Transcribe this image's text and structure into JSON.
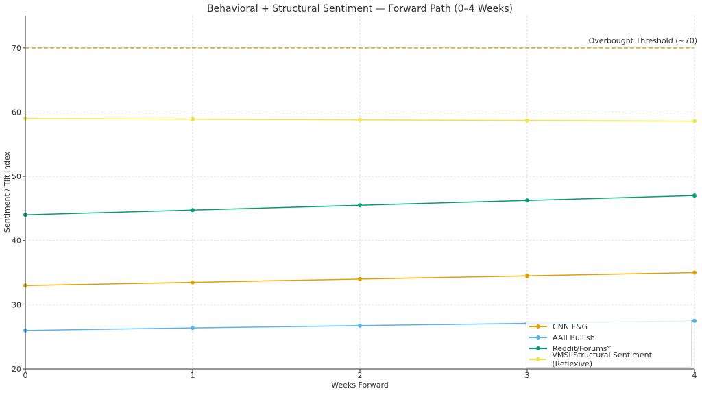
{
  "chart_data": {
    "type": "line",
    "title": "Behavioral + Structural Sentiment — Forward Path (0–4 Weeks)",
    "xlabel": "Weeks Forward",
    "ylabel": "Sentiment / Tilt Index",
    "x": [
      0,
      1,
      2,
      3,
      4
    ],
    "xticks": [
      "0",
      "1",
      "2",
      "3",
      "4"
    ],
    "yticks": [
      "20",
      "30",
      "40",
      "50",
      "60",
      "70"
    ],
    "xlim": [
      0,
      4
    ],
    "ylim": [
      20,
      75
    ],
    "grid": true,
    "legend_position": "bottom-right",
    "series": [
      {
        "name": "CNN F&G",
        "color": "#E69F00",
        "values": [
          33,
          33.5,
          34,
          34.5,
          35
        ]
      },
      {
        "name": "AAII Bullish",
        "color": "#56B4E9",
        "values": [
          26,
          26.4,
          26.75,
          27.1,
          27.5
        ]
      },
      {
        "name": "Reddit/Forums*",
        "color": "#009E73",
        "values": [
          44,
          44.75,
          45.5,
          46.25,
          47
        ]
      },
      {
        "name": "VMSI Structural Sentiment (Reflexive)",
        "color": "#F0E442",
        "values": [
          59,
          58.9,
          58.8,
          58.7,
          58.6
        ]
      }
    ],
    "annotations": [
      {
        "type": "hline",
        "y": 70,
        "color": "#DAA520",
        "style": "dashed",
        "label": "Overbought Threshold (~70)"
      }
    ]
  }
}
